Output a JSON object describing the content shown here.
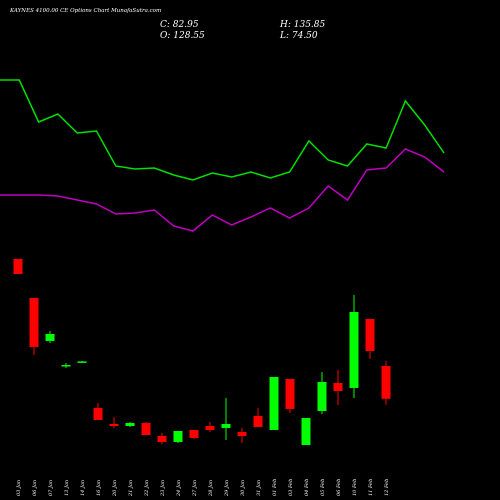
{
  "chart_data": {
    "type": "candlestick",
    "title": "KAYNES 4100.00 CE Options Chart MunafaSutra.com",
    "header": {
      "close": "C: 82.95",
      "high": "H: 135.85",
      "open": "O: 128.55",
      "low": "L: 74.50"
    },
    "categories": [
      "03 Jan",
      "06 Jan",
      "07 Jan",
      "13 Jan",
      "14 Jan",
      "16 Jan",
      "20 Jan",
      "21 Jan",
      "22 Jan",
      "23 Jan",
      "24 Jan",
      "27 Jan",
      "28 Jan",
      "29 Jan",
      "30 Jan",
      "31 Jan",
      "01 Feb",
      "03 Feb",
      "04 Feb",
      "05 Feb",
      "06 Feb",
      "10 Feb",
      "11 Feb",
      "12 Feb"
    ],
    "open": [
      277.3,
      223.1,
      163.3,
      128.6,
      133.5,
      70.2,
      47.9,
      45.1,
      49.3,
      31.3,
      22.9,
      39.6,
      45.1,
      42.4,
      36.8,
      59.1,
      39.6,
      110.5,
      18.7,
      66.0,
      104.9,
      98.0,
      193.9,
      128.55
    ],
    "high": [
      277.3,
      223.1,
      177.2,
      132.7,
      135.5,
      77.1,
      57.7,
      50.7,
      50.7,
      35.4,
      38.2,
      39.6,
      50.7,
      84.0,
      42.4,
      70.2,
      113.3,
      110.5,
      56.3,
      120.2,
      123.0,
      227.2,
      193.9,
      135.85
    ],
    "low": [
      256.4,
      143.8,
      160.5,
      125.8,
      133.0,
      53.5,
      42.4,
      43.8,
      32.6,
      20.1,
      21.5,
      27.1,
      36.8,
      25.7,
      21.5,
      43.8,
      39.6,
      63.2,
      18.7,
      61.8,
      74.3,
      84.0,
      138.3,
      74.5
    ],
    "close": [
      256.4,
      155.0,
      173.0,
      129.9,
      134.9,
      53.5,
      45.1,
      49.3,
      32.6,
      22.9,
      38.2,
      28.5,
      39.6,
      47.9,
      31.3,
      43.8,
      113.3,
      68.8,
      56.3,
      106.3,
      93.8,
      203.6,
      149.4,
      82.95
    ],
    "up_color": "#00ff00",
    "down_color": "#ff0000",
    "ylim": [
      18.7,
      282.8
    ],
    "lines": {
      "ylim": [
        0,
        200
      ],
      "series": [
        {
          "color": "#00e000",
          "values": [
            170,
            170,
            128,
            136,
            117,
            119,
            84,
            81,
            82,
            75,
            70,
            77,
            73,
            78,
            72,
            78,
            109,
            90,
            84,
            106,
            102,
            149,
            125,
            97
          ]
        },
        {
          "color": "#c000c0",
          "values": [
            55,
            55,
            55,
            54,
            50,
            46,
            36,
            37,
            40,
            24,
            19,
            35,
            25,
            33,
            42,
            32,
            42,
            64,
            50,
            80,
            82,
            101,
            93,
            78
          ]
        }
      ]
    }
  }
}
